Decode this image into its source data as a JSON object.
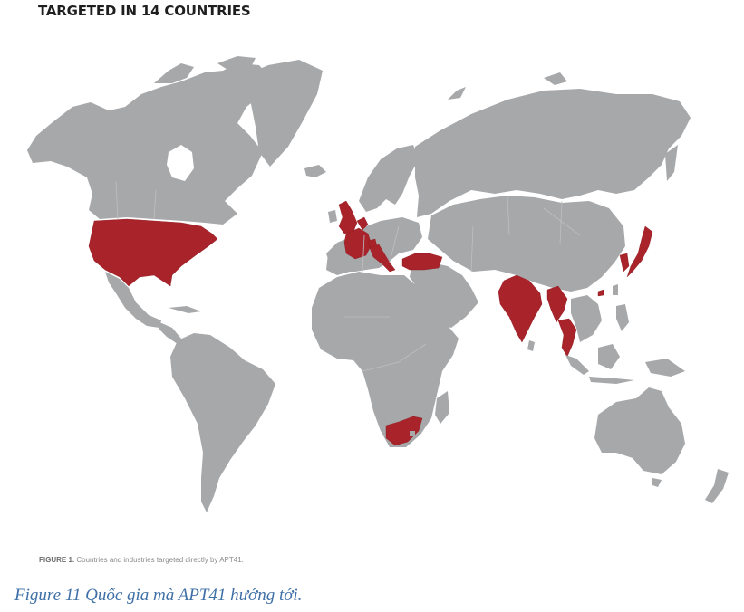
{
  "title": "TARGETED IN 14 COUNTRIES",
  "figure_caption": {
    "label": "FIGURE 1.",
    "text": "Countries and industries targeted directly by APT41."
  },
  "document_caption": "Figure 11 Quốc gia mà APT41 hướng tới.",
  "colors": {
    "land": "#a7a8aa",
    "targeted": "#a8232a",
    "water": "#ffffff",
    "caption_blue": "#3e6fa6"
  },
  "highlighted_regions": [
    "united-states",
    "united-kingdom",
    "france",
    "netherlands",
    "switzerland",
    "italy",
    "turkey",
    "india",
    "myanmar",
    "thailand",
    "south-korea",
    "japan",
    "hong-kong",
    "south-africa"
  ]
}
